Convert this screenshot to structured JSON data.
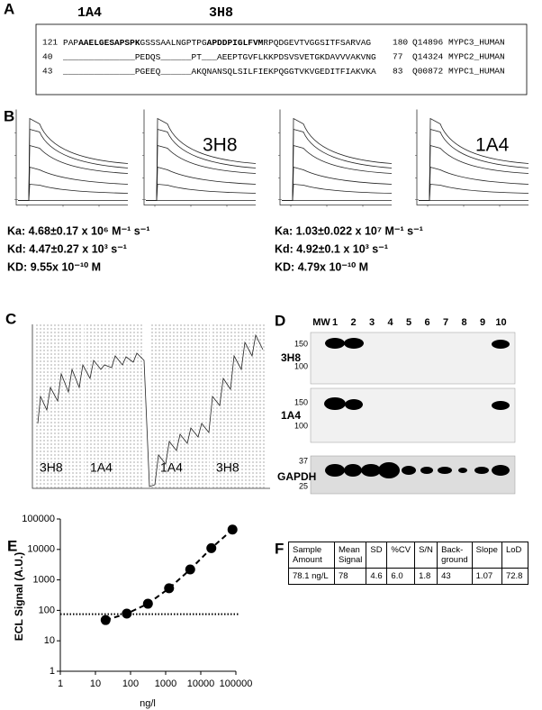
{
  "panels": {
    "A": {
      "label": "A",
      "markers": [
        "1A4",
        "3H8"
      ],
      "lines": [
        {
          "start": "121",
          "parts": [
            {
              "text": "PAP"
            },
            {
              "text": "AAELGESAPSPK",
              "bold": true
            },
            {
              "text": "GSSSAALNGPTPG"
            },
            {
              "text": "APDDPIGLFVM",
              "bold": true
            },
            {
              "text": "RPQDGEVTVGGSITFSARVAG"
            }
          ],
          "end": "180",
          "accession": "Q14896",
          "name": "MYPC3_HUMAN"
        },
        {
          "start": "40",
          "parts": [
            {
              "text": "______________PEDQS______PT___AEEPTGVFLKKPDSVSVETGKDAVVVAKVNG"
            }
          ],
          "end": "77",
          "accession": "Q14324",
          "name": "MYPC2_HUMAN"
        },
        {
          "start": "43",
          "parts": [
            {
              "text": "______________PGEEQ______AKQNANSQLSILFIEKPQGGTVKVGEDITFIAKVKA"
            }
          ],
          "end": "83",
          "accession": "Q00872",
          "name": "MYPC1_HUMAN"
        }
      ]
    },
    "B": {
      "label": "B",
      "plot_labels": [
        "3H8",
        "1A4"
      ],
      "left": [
        "Ka: 4.68±0.17 x 10⁶ M⁻¹ s⁻¹",
        "Kd: 4.47±0.27 x 10³ s⁻¹",
        "KD: 9.55x 10⁻¹⁰ M"
      ],
      "right": [
        "Ka: 1.03±0.022 x 10⁷ M⁻¹ s⁻¹",
        "Kd: 4.92±0.1 x 10³ s⁻¹",
        "KD: 4.79x 10⁻¹⁰ M"
      ]
    },
    "C": {
      "label": "C",
      "groups": [
        "3H8",
        "1A4",
        "1A4",
        "3H8"
      ]
    },
    "D": {
      "label": "D",
      "lanes": [
        "MW",
        "1",
        "2",
        "3",
        "4",
        "5",
        "6",
        "7",
        "8",
        "9",
        "10"
      ],
      "blots": [
        {
          "name": "3H8",
          "markers": [
            "150",
            "100"
          ]
        },
        {
          "name": "1A4",
          "markers": [
            "150",
            "100"
          ]
        },
        {
          "name": "GAPDH",
          "markers": [
            "37",
            "25"
          ]
        }
      ]
    },
    "E": {
      "label": "E"
    },
    "F": {
      "label": "F",
      "table": {
        "header": [
          "Sample Amount",
          "Mean Signal",
          "SD",
          "%CV",
          "S/N",
          "Back-ground",
          "Slope",
          "LoD"
        ],
        "rows": [
          [
            "78.1 ng/L",
            "78",
            "4.6",
            "6.0",
            "1.8",
            "43",
            "1.07",
            "72.8"
          ]
        ]
      }
    }
  },
  "chart_data": {
    "type": "scatter",
    "x_label": "ng/l",
    "y_label": "ECL Signal (A.U.)",
    "xscale": "log",
    "yscale": "log",
    "x": [
      19.5,
      78.1,
      312.5,
      1250,
      5000,
      20000,
      80000
    ],
    "series": [
      {
        "color": "#000000",
        "values": [
          48,
          78,
          165,
          530,
          2200,
          11000,
          45000
        ]
      }
    ],
    "line_style": "dashed",
    "reference_line": 75,
    "xlim": [
      1,
      100000
    ],
    "xticks": [
      1,
      10,
      100,
      1000,
      10000,
      100000
    ],
    "ylim": [
      1,
      100000
    ],
    "yticks": [
      1,
      10,
      100,
      1000,
      10000,
      100000
    ]
  }
}
